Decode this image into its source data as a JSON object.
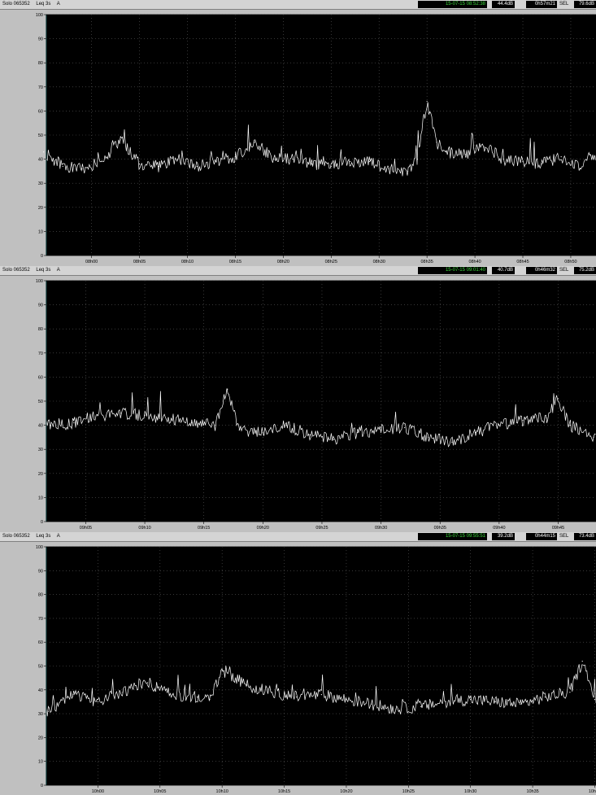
{
  "panels": [
    {
      "header": {
        "device": "Solo 065352",
        "measure": "Leq 3s",
        "weighting": "A",
        "timestamp": "15-07-15 08:52:38",
        "level": "44.4dB",
        "duration": "0h57m21",
        "sel_label": "SEL",
        "sel": "79.6dB"
      }
    },
    {
      "header": {
        "device": "Solo 065352",
        "measure": "Leq 3s",
        "weighting": "A",
        "timestamp": "15-07-15 09:01:40",
        "level": "40.7dB",
        "duration": "0h46m32",
        "sel_label": "SEL",
        "sel": "75.2dB"
      }
    },
    {
      "header": {
        "device": "Solo 065352",
        "measure": "Leq 3s",
        "weighting": "A",
        "timestamp": "15-07-15 09:55:51",
        "level": "39.2dB",
        "duration": "0h44m15",
        "sel_label": "SEL",
        "sel": "73.4dB"
      }
    }
  ],
  "chart_data": [
    {
      "type": "line",
      "ylim": [
        0,
        100
      ],
      "yticks": [
        0,
        10,
        20,
        30,
        40,
        50,
        60,
        70,
        80,
        90,
        100
      ],
      "xlim": [
        "07:55:17",
        "08:52:38"
      ],
      "xticks": [
        "08h00",
        "08h05",
        "08h10",
        "08h15",
        "08h20",
        "08h25",
        "08h30",
        "08h35",
        "08h40",
        "08h45",
        "08h50"
      ],
      "grid": true,
      "series": [
        {
          "x": [
            "07:55",
            "07:57",
            "07:59",
            "08:01",
            "08:03",
            "08:05",
            "08:07",
            "08:09",
            "08:11",
            "08:13",
            "08:15",
            "08:17",
            "08:19",
            "08:21",
            "08:23",
            "08:25",
            "08:27",
            "08:29",
            "08:31",
            "08:33",
            "08:34",
            "08:35",
            "08:36",
            "08:37",
            "08:39",
            "08:41",
            "08:43",
            "08:45",
            "08:47",
            "08:49",
            "08:51",
            "08:52"
          ],
          "values": [
            43,
            37,
            36,
            39,
            48,
            38,
            37,
            40,
            37,
            39,
            41,
            47,
            40,
            40,
            38,
            37,
            39,
            39,
            36,
            35,
            40,
            64,
            47,
            43,
            42,
            45,
            40,
            39,
            38,
            41,
            36,
            42
          ],
          "color": "#ffffff"
        }
      ]
    },
    {
      "type": "line",
      "ylim": [
        0,
        100
      ],
      "yticks": [
        0,
        10,
        20,
        30,
        40,
        50,
        60,
        70,
        80,
        90,
        100
      ],
      "xlim": [
        "09:01:40",
        "09:48:12"
      ],
      "xticks": [
        "09h05",
        "09h10",
        "09h15",
        "09h20",
        "09h25",
        "09h30",
        "09h35",
        "09h40",
        "09h45"
      ],
      "grid": true,
      "series": [
        {
          "x": [
            "09:02",
            "09:04",
            "09:06",
            "09:08",
            "09:10",
            "09:12",
            "09:14",
            "09:16",
            "09:17",
            "09:18",
            "09:20",
            "09:22",
            "09:24",
            "09:26",
            "09:28",
            "09:30",
            "09:32",
            "09:34",
            "09:36",
            "09:38",
            "09:40",
            "09:42",
            "09:44",
            "09:45",
            "09:46",
            "09:48"
          ],
          "values": [
            40,
            41,
            44,
            45,
            44,
            43,
            41,
            40,
            55,
            38,
            37,
            40,
            36,
            34,
            37,
            38,
            39,
            35,
            33,
            37,
            40,
            42,
            43,
            51,
            40,
            35
          ],
          "color": "#ffffff"
        }
      ]
    },
    {
      "type": "line",
      "ylim": [
        0,
        100
      ],
      "yticks": [
        0,
        10,
        20,
        30,
        40,
        50,
        60,
        70,
        80,
        90,
        100
      ],
      "xlim": [
        "09:55:51",
        "10:40:06"
      ],
      "xticks": [
        "10h00",
        "10h05",
        "10h10",
        "10h15",
        "10h20",
        "10h25",
        "10h30",
        "10h35",
        "10h40"
      ],
      "grid": true,
      "series": [
        {
          "x": [
            "09:56",
            "09:58",
            "10:00",
            "10:02",
            "10:04",
            "10:06",
            "10:08",
            "10:09",
            "10:10",
            "10:12",
            "10:14",
            "10:16",
            "10:18",
            "10:20",
            "10:22",
            "10:24",
            "10:26",
            "10:28",
            "10:30",
            "10:32",
            "10:34",
            "10:36",
            "10:38",
            "10:39",
            "10:40"
          ],
          "values": [
            31,
            38,
            35,
            39,
            43,
            38,
            37,
            36,
            48,
            42,
            39,
            37,
            38,
            36,
            34,
            32,
            33,
            35,
            36,
            35,
            34,
            37,
            39,
            52,
            36
          ],
          "color": "#ffffff"
        }
      ]
    }
  ]
}
